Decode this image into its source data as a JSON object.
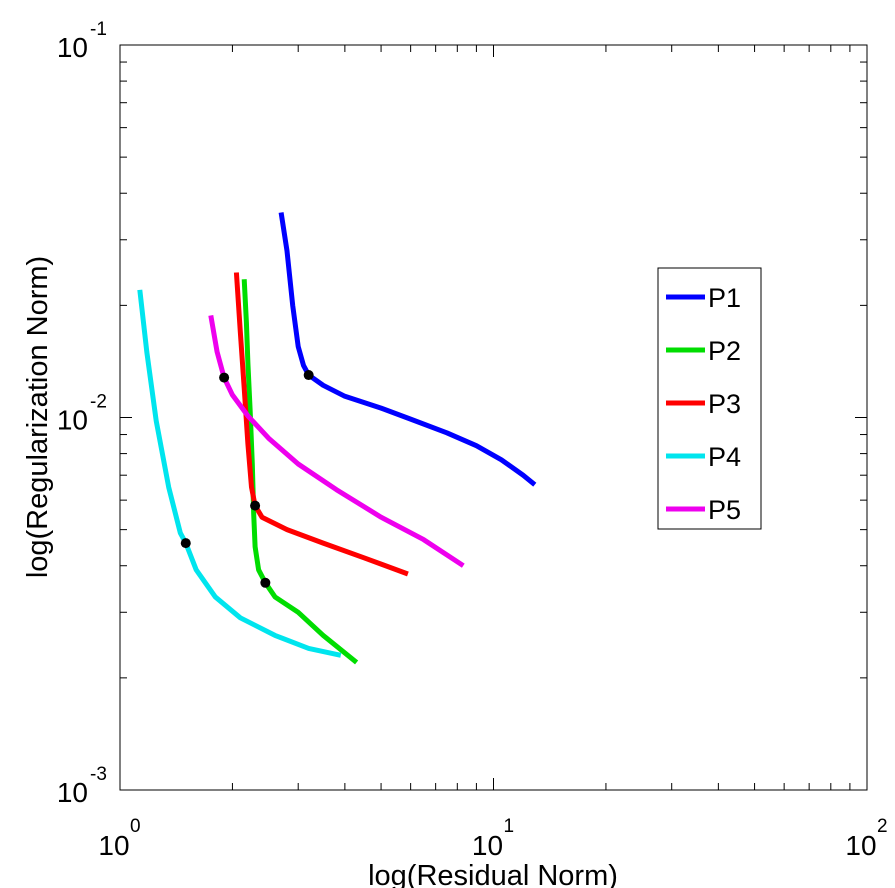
{
  "chart_data": {
    "type": "line",
    "title": "",
    "xlabel": "log(Residual Norm)",
    "ylabel": "log(Regularization Norm)",
    "xscale": "log",
    "yscale": "log",
    "xlim": [
      1,
      100
    ],
    "ylim": [
      0.001,
      0.1
    ],
    "x_ticks": [
      {
        "base": "10",
        "exp": "0",
        "value": 1
      },
      {
        "base": "10",
        "exp": "1",
        "value": 10
      },
      {
        "base": "10",
        "exp": "2",
        "value": 100
      }
    ],
    "y_ticks": [
      {
        "base": "10",
        "exp": "-3",
        "value": 0.001
      },
      {
        "base": "10",
        "exp": "-2",
        "value": 0.01
      },
      {
        "base": "10",
        "exp": "-1",
        "value": 0.1
      }
    ],
    "grid": false,
    "legend_position": "right",
    "series": [
      {
        "name": "P1",
        "color": "#0000ff",
        "points": [
          [
            2.7,
            0.0355
          ],
          [
            2.8,
            0.028
          ],
          [
            2.9,
            0.02
          ],
          [
            3.0,
            0.0155
          ],
          [
            3.1,
            0.0138
          ],
          [
            3.2,
            0.013
          ],
          [
            3.5,
            0.0122
          ],
          [
            4.0,
            0.0114
          ],
          [
            5.0,
            0.0106
          ],
          [
            6.0,
            0.0099
          ],
          [
            7.5,
            0.0091
          ],
          [
            9.0,
            0.0084
          ],
          [
            10.5,
            0.0077
          ],
          [
            12.0,
            0.007
          ],
          [
            12.9,
            0.0066
          ]
        ],
        "corner": [
          3.2,
          0.013
        ]
      },
      {
        "name": "P2",
        "color": "#00dd00",
        "points": [
          [
            2.15,
            0.0235
          ],
          [
            2.18,
            0.018
          ],
          [
            2.2,
            0.014
          ],
          [
            2.23,
            0.0105
          ],
          [
            2.26,
            0.0075
          ],
          [
            2.28,
            0.0055
          ],
          [
            2.3,
            0.0045
          ],
          [
            2.35,
            0.0039
          ],
          [
            2.45,
            0.0036
          ],
          [
            2.6,
            0.0033
          ],
          [
            3.0,
            0.003
          ],
          [
            3.5,
            0.0026
          ],
          [
            4.3,
            0.0022
          ]
        ],
        "corner": [
          2.45,
          0.0036
        ]
      },
      {
        "name": "P3",
        "color": "#ff0000",
        "points": [
          [
            2.05,
            0.0245
          ],
          [
            2.1,
            0.017
          ],
          [
            2.15,
            0.012
          ],
          [
            2.2,
            0.0085
          ],
          [
            2.25,
            0.0065
          ],
          [
            2.3,
            0.0058
          ],
          [
            2.4,
            0.0054
          ],
          [
            2.8,
            0.005
          ],
          [
            3.5,
            0.0046
          ],
          [
            4.5,
            0.0042
          ],
          [
            5.9,
            0.0038
          ]
        ],
        "corner": [
          2.3,
          0.0058
        ]
      },
      {
        "name": "P4",
        "color": "#00e5ee",
        "points": [
          [
            1.13,
            0.022
          ],
          [
            1.18,
            0.015
          ],
          [
            1.25,
            0.0098
          ],
          [
            1.35,
            0.0065
          ],
          [
            1.45,
            0.0049
          ],
          [
            1.5,
            0.0046
          ],
          [
            1.6,
            0.0039
          ],
          [
            1.8,
            0.0033
          ],
          [
            2.1,
            0.0029
          ],
          [
            2.6,
            0.0026
          ],
          [
            3.2,
            0.0024
          ],
          [
            3.9,
            0.0023
          ]
        ],
        "corner": [
          1.5,
          0.0046
        ]
      },
      {
        "name": "P5",
        "color": "#ee00ee",
        "points": [
          [
            1.75,
            0.0188
          ],
          [
            1.82,
            0.015
          ],
          [
            1.9,
            0.0128
          ],
          [
            2.0,
            0.0115
          ],
          [
            2.2,
            0.0101
          ],
          [
            2.5,
            0.0088
          ],
          [
            3.0,
            0.0075
          ],
          [
            3.8,
            0.0064
          ],
          [
            5.0,
            0.0054
          ],
          [
            6.5,
            0.0047
          ],
          [
            8.3,
            0.004
          ]
        ],
        "corner": [
          1.9,
          0.0128
        ]
      }
    ]
  }
}
